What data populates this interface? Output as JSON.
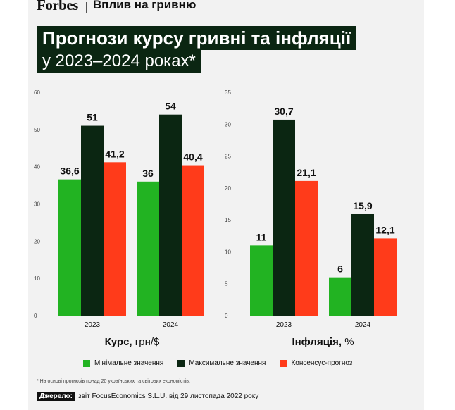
{
  "header": {
    "brand": "Forbes",
    "section": "Вплив на гривню"
  },
  "title": {
    "line1": "Прогнози курсу гривні та інфляції",
    "line2": "у 2023–2024 роках*"
  },
  "colors": {
    "min": "#22b322",
    "max": "#0b2612",
    "consensus": "#ff3b1a",
    "title_bg": "#0b2612"
  },
  "legend": {
    "min": "Мінімальне значення",
    "max": "Максимальне значення",
    "consensus": "Консенсус-прогноз"
  },
  "footnote": "* На основі прогнозів понад 20 українських та світових економістів.",
  "source": {
    "tag": "Джерело:",
    "text": "звіт FocusEconomics S.L.U. від 29 листопада 2022 року"
  },
  "chart_data": [
    {
      "type": "bar",
      "xlabel_bold": "Курс,",
      "xlabel_rest": " грн/$",
      "categories": [
        "2023",
        "2024"
      ],
      "ylim": [
        0,
        60
      ],
      "yticks": [
        0,
        10,
        20,
        30,
        40,
        50,
        60
      ],
      "series": [
        {
          "name": "Мінімальне значення",
          "key": "min",
          "values": [
            36.6,
            36
          ],
          "labels": [
            "36,6",
            "36"
          ]
        },
        {
          "name": "Максимальне значення",
          "key": "max",
          "values": [
            51,
            54
          ],
          "labels": [
            "51",
            "54"
          ]
        },
        {
          "name": "Консенсус-прогноз",
          "key": "consensus",
          "values": [
            41.2,
            40.4
          ],
          "labels": [
            "41,2",
            "40,4"
          ]
        }
      ],
      "grid": false
    },
    {
      "type": "bar",
      "xlabel_bold": "Інфляція,",
      "xlabel_rest": " %",
      "categories": [
        "2023",
        "2024"
      ],
      "ylim": [
        0,
        35
      ],
      "yticks": [
        0,
        5,
        10,
        15,
        20,
        25,
        30,
        35
      ],
      "series": [
        {
          "name": "Мінімальне значення",
          "key": "min",
          "values": [
            11,
            6
          ],
          "labels": [
            "11",
            "6"
          ]
        },
        {
          "name": "Максимальне значення",
          "key": "max",
          "values": [
            30.7,
            15.9
          ],
          "labels": [
            "30,7",
            "15,9"
          ]
        },
        {
          "name": "Консенсус-прогноз",
          "key": "consensus",
          "values": [
            21.1,
            12.1
          ],
          "labels": [
            "21,1",
            "12,1"
          ]
        }
      ],
      "grid": false
    }
  ]
}
